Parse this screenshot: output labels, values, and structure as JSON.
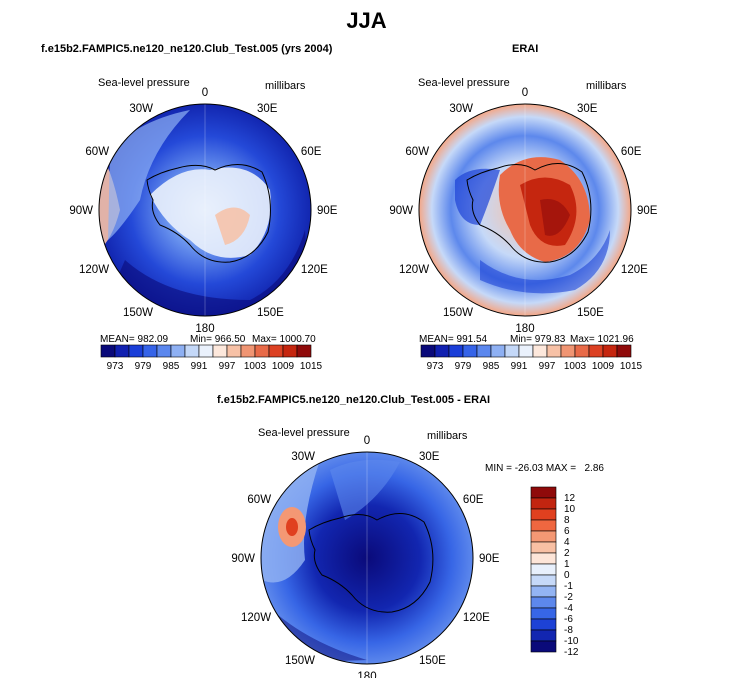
{
  "title": "JJA",
  "panels": {
    "model": {
      "title": "f.e15b2.FAMPIC5.ne120_ne120.Club_Test.005 (yrs 2004)",
      "variable": "Sea-level pressure",
      "units": "millibars",
      "stats": {
        "mean": "MEAN= 982.09",
        "min": "Min= 966.50",
        "max": "Max= 1000.70"
      }
    },
    "obs": {
      "title": "ERAI",
      "variable": "Sea-level pressure",
      "units": "millibars",
      "stats": {
        "mean": "MEAN= 991.54",
        "min": "Min= 979.83",
        "max": "Max= 1021.96"
      }
    },
    "diff": {
      "title": "f.e15b2.FAMPIC5.ne120_ne120.Club_Test.005 - ERAI",
      "variable": "Sea-level pressure",
      "units": "millibars",
      "stats_text": "MIN = -26.03 MAX =   2.86"
    }
  },
  "longitude_labels": [
    "0",
    "30E",
    "60E",
    "90E",
    "120E",
    "150E",
    "180",
    "150W",
    "120W",
    "90W",
    "60W",
    "30W"
  ],
  "colorbar_abs": {
    "labels": [
      "973",
      "979",
      "985",
      "991",
      "997",
      "1003",
      "1009",
      "1015"
    ],
    "colors": [
      "#0a0a7a",
      "#1020b0",
      "#1a3ed8",
      "#3563e8",
      "#5b87ee",
      "#8eb0f3",
      "#c4d8f8",
      "#eaf1fc",
      "#fde8dc",
      "#f7c1a6",
      "#f09573",
      "#e86a48",
      "#dc4123",
      "#c5260f",
      "#8f0a0a"
    ]
  },
  "colorbar_diff": {
    "labels": [
      "12",
      "10",
      "8",
      "6",
      "4",
      "2",
      "1",
      "0",
      "-1",
      "-2",
      "-4",
      "-6",
      "-8",
      "-10",
      "-12"
    ],
    "colors": [
      "#8f0a0a",
      "#c22510",
      "#e0401f",
      "#ef6740",
      "#f49874",
      "#f8c0a4",
      "#fde5d8",
      "#e8f0fc",
      "#c6d9f8",
      "#93b4f3",
      "#5d88ec",
      "#3766e6",
      "#1d42d6",
      "#1226b0",
      "#0a0a7a"
    ]
  }
}
